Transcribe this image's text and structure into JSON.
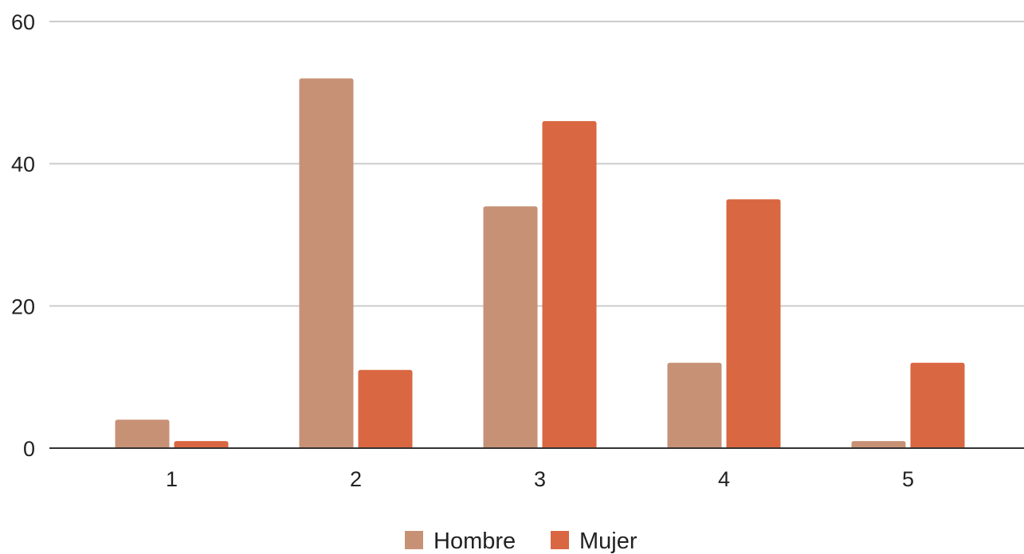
{
  "chart_data": {
    "type": "bar",
    "categories": [
      "1",
      "2",
      "3",
      "4",
      "5"
    ],
    "series": [
      {
        "name": "Hombre",
        "color": "#c79176",
        "values": [
          4,
          52,
          34,
          12,
          1
        ]
      },
      {
        "name": "Mujer",
        "color": "#d96742",
        "values": [
          1,
          11,
          46,
          35,
          12
        ]
      }
    ],
    "title": "",
    "xlabel": "",
    "ylabel": "",
    "ylim": [
      0,
      60
    ],
    "yticks": [
      "0",
      "20",
      "40",
      "60"
    ],
    "grid": true,
    "grid_color": "#cccccc",
    "axis_color": "#333333",
    "legend_position": "bottom"
  }
}
